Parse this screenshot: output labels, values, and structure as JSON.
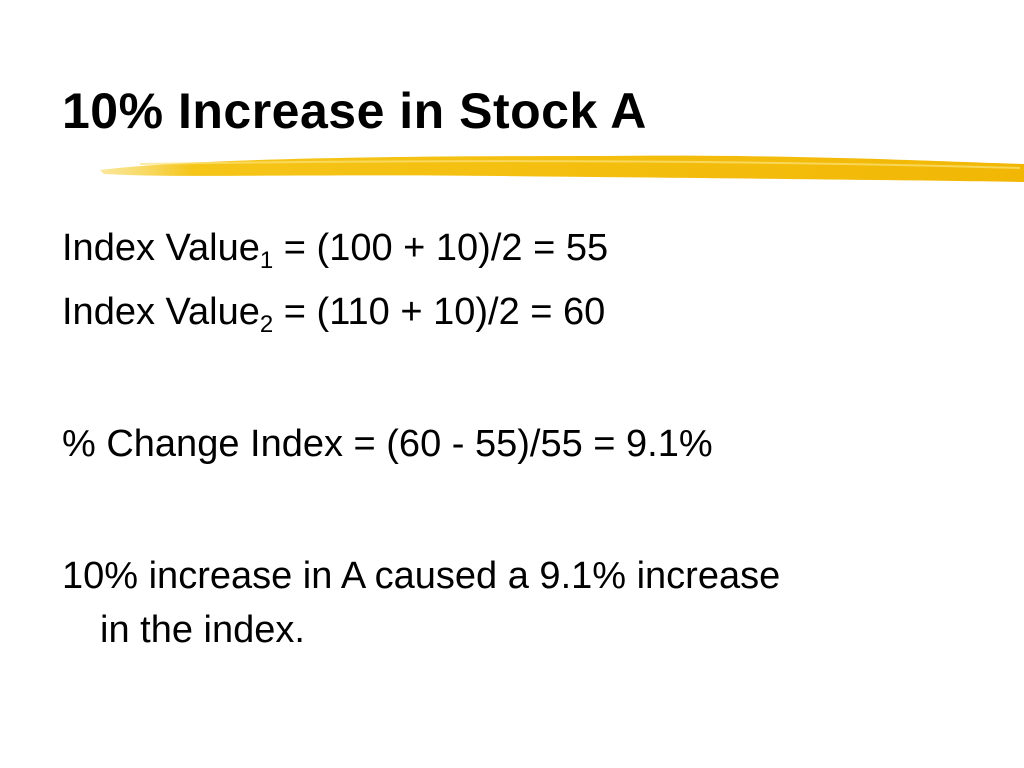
{
  "title": "10% Increase in Stock A",
  "lines": [
    {
      "text": "Index Value",
      "sub": "1",
      "rest": " = (100 + 10)/2 = 55"
    },
    {
      "text": "Index Value",
      "sub": "2",
      "rest": " = (110 + 10)/2 = 60"
    }
  ],
  "paragraphs": [
    "% Change Index = (60 - 55)/55 = 9.1%",
    [
      "10% increase in A caused a 9.1% increase",
      "in the index."
    ]
  ]
}
